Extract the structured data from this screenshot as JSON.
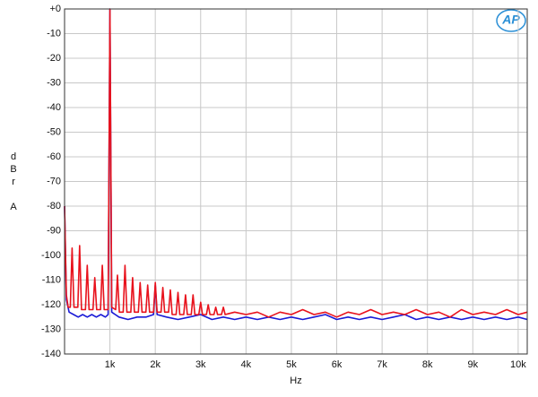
{
  "chart_data": {
    "type": "line",
    "logo": "AP",
    "xlabel": "Hz",
    "ylabel": "dBr",
    "ylabel_weighting": "A",
    "xlim": [
      0,
      10200
    ],
    "ylim": [
      -140,
      0
    ],
    "grid": true,
    "xticks": [
      {
        "value": 1000,
        "label": "1k"
      },
      {
        "value": 2000,
        "label": "2k"
      },
      {
        "value": 3000,
        "label": "3k"
      },
      {
        "value": 4000,
        "label": "4k"
      },
      {
        "value": 5000,
        "label": "5k"
      },
      {
        "value": 6000,
        "label": "6k"
      },
      {
        "value": 7000,
        "label": "7k"
      },
      {
        "value": 8000,
        "label": "8k"
      },
      {
        "value": 9000,
        "label": "9k"
      },
      {
        "value": 10000,
        "label": "10k"
      }
    ],
    "yticks": [
      {
        "value": 0,
        "label": "+0"
      },
      -10,
      -20,
      -30,
      -40,
      -50,
      -60,
      -70,
      -80,
      -90,
      -100,
      -110,
      -120,
      -130,
      -140
    ],
    "series": [
      {
        "color": "#1a1ad6",
        "x": [
          0,
          40,
          100,
          200,
          300,
          400,
          500,
          600,
          700,
          800,
          900,
          960,
          1000,
          1040,
          1200,
          1400,
          1600,
          1800,
          1960,
          2000,
          2040,
          2250,
          2500,
          2750,
          3000,
          3250,
          3500,
          3750,
          4000,
          4250,
          4500,
          4750,
          5000,
          5250,
          5500,
          5750,
          6000,
          6250,
          6500,
          6750,
          7000,
          7250,
          7500,
          7750,
          8000,
          8250,
          8500,
          8750,
          9000,
          9250,
          9500,
          9750,
          10000,
          10200
        ],
        "values": [
          -80,
          -118,
          -123,
          -124,
          -125,
          -124,
          -125,
          -124,
          -125,
          -124,
          -125,
          -124,
          0,
          -123,
          -125,
          -126,
          -125,
          -125,
          -124,
          -112,
          -124,
          -125,
          -126,
          -125,
          -124,
          -126,
          -125,
          -126,
          -125,
          -126,
          -125,
          -126,
          -125,
          -126,
          -125,
          -124,
          -126,
          -125,
          -126,
          -125,
          -126,
          -125,
          -124,
          -126,
          -125,
          -126,
          -125,
          -126,
          -125,
          -126,
          -125,
          -126,
          -125,
          -126
        ]
      },
      {
        "color": "#e8121c",
        "x": [
          0,
          40,
          80,
          127,
          167,
          207,
          293,
          333,
          373,
          460,
          500,
          540,
          627,
          667,
          707,
          793,
          833,
          873,
          960,
          1000,
          1040,
          1127,
          1167,
          1207,
          1293,
          1333,
          1373,
          1460,
          1500,
          1540,
          1627,
          1667,
          1707,
          1793,
          1833,
          1873,
          1960,
          2000,
          2040,
          2127,
          2167,
          2207,
          2293,
          2333,
          2373,
          2460,
          2500,
          2540,
          2627,
          2667,
          2707,
          2793,
          2833,
          2873,
          2960,
          3000,
          3040,
          3127,
          3167,
          3207,
          3293,
          3333,
          3373,
          3460,
          3500,
          3540,
          3750,
          4000,
          4250,
          4500,
          4750,
          5000,
          5250,
          5500,
          5750,
          6000,
          6250,
          6500,
          6750,
          7000,
          7250,
          7500,
          7750,
          8000,
          8250,
          8500,
          8750,
          9000,
          9250,
          9500,
          9750,
          10000,
          10200
        ],
        "values": [
          -80,
          -116,
          -121,
          -121,
          -97,
          -121,
          -121,
          -96,
          -122,
          -122,
          -104,
          -122,
          -122,
          -109,
          -122,
          -122,
          -104,
          -122,
          -122,
          0,
          -121,
          -122,
          -108,
          -123,
          -123,
          -104,
          -123,
          -123,
          -109,
          -123,
          -123,
          -111,
          -123,
          -123,
          -112,
          -123,
          -123,
          -111,
          -123,
          -123,
          -113,
          -123,
          -123,
          -114,
          -124,
          -124,
          -115,
          -124,
          -124,
          -116,
          -124,
          -124,
          -116,
          -124,
          -124,
          -119,
          -124,
          -124,
          -120,
          -124,
          -124,
          -121,
          -124,
          -124,
          -121,
          -124,
          -123,
          -124,
          -123,
          -125,
          -123,
          -124,
          -122,
          -124,
          -123,
          -125,
          -123,
          -124,
          -122,
          -124,
          -123,
          -124,
          -122,
          -124,
          -123,
          -125,
          -122,
          -124,
          -123,
          -124,
          -122,
          -124,
          -123
        ]
      }
    ]
  }
}
